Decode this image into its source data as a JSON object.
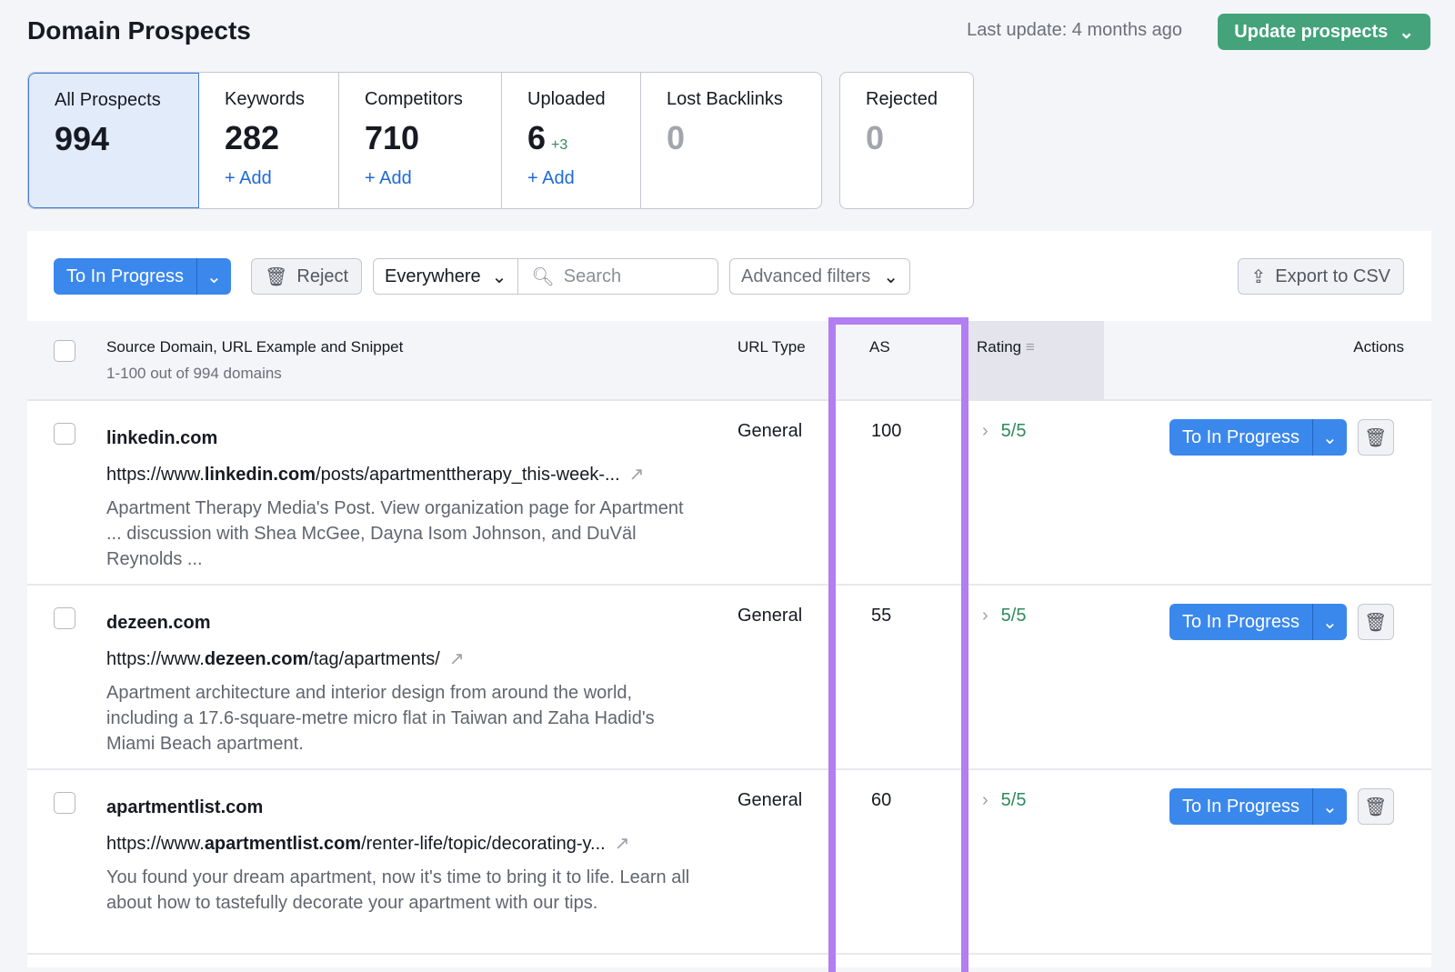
{
  "header": {
    "title": "Domain Prospects",
    "last_update": "Last update: 4 months ago",
    "update_button": "Update prospects"
  },
  "cards": [
    {
      "label": "All Prospects",
      "count": "994"
    },
    {
      "label": "Keywords",
      "count": "282",
      "add": "+ Add"
    },
    {
      "label": "Competitors",
      "count": "710",
      "add": "+ Add"
    },
    {
      "label": "Uploaded",
      "count": "6",
      "delta": "+3",
      "add": "+ Add"
    },
    {
      "label": "Lost Backlinks",
      "count": "0"
    },
    {
      "label": "Rejected",
      "count": "0"
    }
  ],
  "toolbar": {
    "to_in_progress": "To In Progress",
    "reject": "Reject",
    "scope": "Everywhere",
    "search_placeholder": "Search",
    "advanced_filters": "Advanced filters",
    "export": "Export to CSV"
  },
  "table": {
    "columns": {
      "source": "Source Domain, URL Example and Snippet",
      "count": "1-100 out of 994 domains",
      "url_type": "URL Type",
      "as": "AS",
      "rating": "Rating",
      "actions": "Actions"
    },
    "rows": [
      {
        "domain": "linkedin.com",
        "url_prefix": "https://www.",
        "url_domain": "linkedin.com",
        "url_path": "/posts/apartmenttherapy_this-week-...",
        "snippet": "Apartment Therapy Media's Post. View organization page for Apartment ... discussion with Shea McGee, Dayna Isom Johnson, and DuVäl Reynolds ...",
        "url_type": "General",
        "as": "100",
        "rating": "5/5",
        "action": "To In Progress"
      },
      {
        "domain": "dezeen.com",
        "url_prefix": "https://www.",
        "url_domain": "dezeen.com",
        "url_path": "/tag/apartments/",
        "snippet": "Apartment architecture and interior design from around the world, including a 17.6-square-metre micro flat in Taiwan and Zaha Hadid's Miami Beach apartment.",
        "url_type": "General",
        "as": "55",
        "rating": "5/5",
        "action": "To In Progress"
      },
      {
        "domain": "apartmentlist.com",
        "url_prefix": "https://www.",
        "url_domain": "apartmentlist.com",
        "url_path": "/renter-life/topic/decorating-y...",
        "snippet": "You found your dream apartment, now it's time to bring it to life. Learn all about how to tastefully decorate your apartment with our tips.",
        "url_type": "General",
        "as": "60",
        "rating": "5/5",
        "action": "To In Progress"
      }
    ]
  },
  "colors": {
    "primary": "#3b88ec",
    "update": "#44a37a",
    "highlight": "#b27ef2",
    "rating": "#2f8a5b"
  }
}
